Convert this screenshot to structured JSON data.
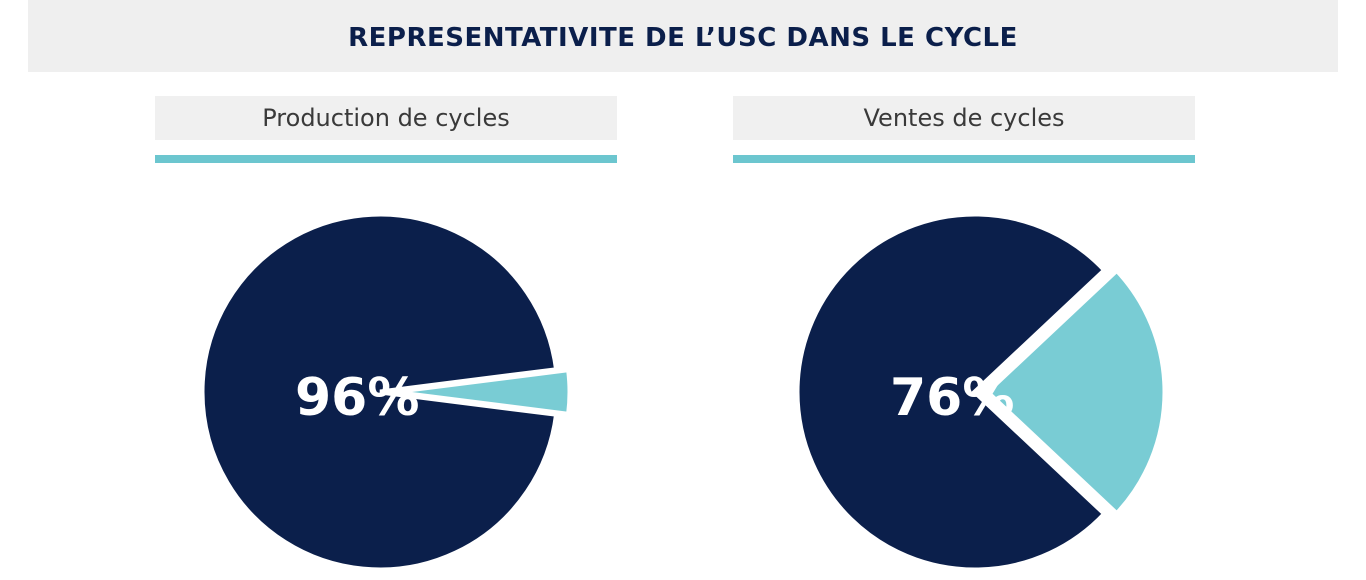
{
  "title": "REPRESENTATIVITE DE L’USC DANS LE CYCLE",
  "colors": {
    "navy": "#0b1f4b",
    "teal": "#79ccd4",
    "title_text": "#0b1f4b",
    "header_bg": "#f0f0f0",
    "underline": "#6cc6cf"
  },
  "chart_data": [
    {
      "type": "pie",
      "title": "Production de cycles",
      "slices": [
        {
          "value": 96,
          "color": "#0b1f4b"
        },
        {
          "value": 4,
          "color": "#79ccd4"
        }
      ],
      "label": "96%"
    },
    {
      "type": "pie",
      "title": "Ventes de cycles",
      "slices": [
        {
          "value": 76,
          "color": "#0b1f4b"
        },
        {
          "value": 24,
          "color": "#79ccd4"
        }
      ],
      "label": "76%"
    }
  ]
}
